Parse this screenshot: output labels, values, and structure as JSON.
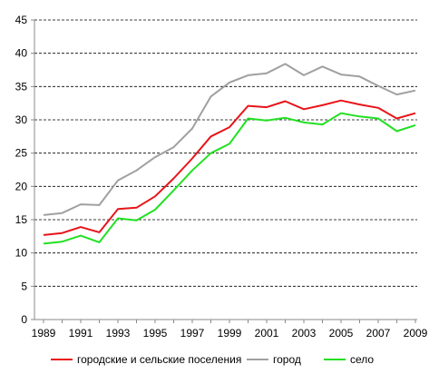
{
  "chart_data": {
    "type": "line",
    "x": [
      1989,
      1990,
      1991,
      1992,
      1993,
      1994,
      1995,
      1996,
      1997,
      1998,
      1999,
      2000,
      2001,
      2002,
      2003,
      2004,
      2005,
      2006,
      2007,
      2008,
      2009
    ],
    "x_tick_labels": [
      "1989",
      "1991",
      "1993",
      "1995",
      "1997",
      "1999",
      "2001",
      "2003",
      "2005",
      "2007",
      "2009"
    ],
    "y_tick_labels": [
      "0",
      "5",
      "10",
      "15",
      "20",
      "25",
      "30",
      "35",
      "40",
      "45"
    ],
    "ylim": [
      0,
      45
    ],
    "grid": "horizontal-dashed",
    "legend_position": "bottom",
    "series": [
      {
        "name": "городские и сельские поселения",
        "color": "#e8141a",
        "values": [
          12.7,
          13.0,
          13.9,
          13.1,
          16.6,
          16.8,
          18.5,
          21.2,
          24.2,
          27.5,
          28.9,
          32.1,
          31.9,
          32.8,
          31.6,
          32.2,
          32.9,
          32.3,
          31.8,
          30.2,
          31.0
        ]
      },
      {
        "name": "город",
        "color": "#a0a0a0",
        "values": [
          15.7,
          16.0,
          17.3,
          17.2,
          20.9,
          22.4,
          24.4,
          25.9,
          28.7,
          33.5,
          35.6,
          36.7,
          37.0,
          38.4,
          36.7,
          38.0,
          36.8,
          36.5,
          35.1,
          33.8,
          34.4
        ]
      },
      {
        "name": "село",
        "color": "#22e022",
        "values": [
          11.4,
          11.7,
          12.6,
          11.6,
          15.2,
          14.9,
          16.5,
          19.4,
          22.4,
          25.0,
          26.4,
          30.2,
          29.9,
          30.3,
          29.6,
          29.3,
          31.0,
          30.5,
          30.2,
          28.3,
          29.2
        ]
      }
    ]
  }
}
